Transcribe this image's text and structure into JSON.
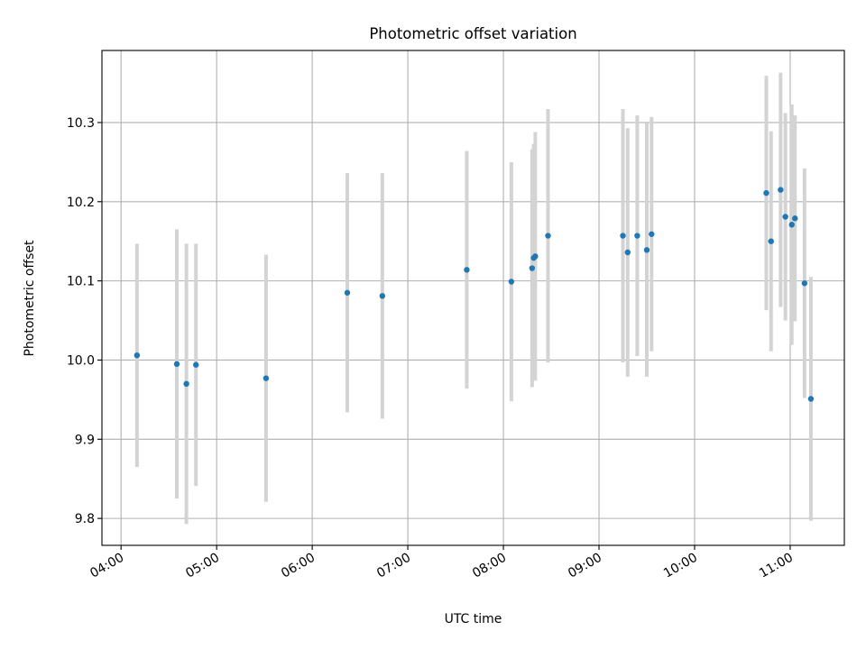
{
  "chart_data": {
    "type": "scatter",
    "title": "Photometric offset variation",
    "xlabel": "UTC time",
    "ylabel": "Photometric offset",
    "x_unit": "UTC time (hours)",
    "xlim": [
      "03:48",
      "11:34"
    ],
    "ylim": [
      9.766,
      10.391
    ],
    "x_ticks": [
      "04:00",
      "05:00",
      "06:00",
      "07:00",
      "08:00",
      "09:00",
      "10:00",
      "11:00"
    ],
    "y_ticks": [
      9.8,
      9.9,
      10.0,
      10.1,
      10.2,
      10.3
    ],
    "y_tick_labels": [
      "9.8",
      "9.9",
      "10.0",
      "10.1",
      "10.2",
      "10.3"
    ],
    "grid": true,
    "colors": {
      "point": "#1f77b4",
      "errorbar": "#d3d3d3",
      "grid": "#b0b0b0"
    },
    "points": [
      {
        "time": "04:10",
        "y": 10.006,
        "err": 0.141
      },
      {
        "time": "04:35",
        "y": 9.995,
        "err": 0.17
      },
      {
        "time": "04:41",
        "y": 9.97,
        "err": 0.177
      },
      {
        "time": "04:47",
        "y": 9.994,
        "err": 0.153
      },
      {
        "time": "05:31",
        "y": 9.977,
        "err": 0.156
      },
      {
        "time": "06:22",
        "y": 10.085,
        "err": 0.151
      },
      {
        "time": "06:44",
        "y": 10.081,
        "err": 0.155
      },
      {
        "time": "07:37",
        "y": 10.114,
        "err": 0.15
      },
      {
        "time": "08:05",
        "y": 10.099,
        "err": 0.151
      },
      {
        "time": "08:18",
        "y": 10.116,
        "err": 0.15
      },
      {
        "time": "08:19",
        "y": 10.129,
        "err": 0.144
      },
      {
        "time": "08:20",
        "y": 10.131,
        "err": 0.157
      },
      {
        "time": "08:28",
        "y": 10.157,
        "err": 0.16
      },
      {
        "time": "09:15",
        "y": 10.157,
        "err": 0.16
      },
      {
        "time": "09:18",
        "y": 10.136,
        "err": 0.157
      },
      {
        "time": "09:24",
        "y": 10.157,
        "err": 0.152
      },
      {
        "time": "09:30",
        "y": 10.139,
        "err": 0.16
      },
      {
        "time": "09:33",
        "y": 10.159,
        "err": 0.148
      },
      {
        "time": "10:45",
        "y": 10.211,
        "err": 0.148
      },
      {
        "time": "10:48",
        "y": 10.15,
        "err": 0.139
      },
      {
        "time": "10:54",
        "y": 10.215,
        "err": 0.148
      },
      {
        "time": "10:57",
        "y": 10.181,
        "err": 0.131
      },
      {
        "time": "11:01",
        "y": 10.171,
        "err": 0.152
      },
      {
        "time": "11:03",
        "y": 10.179,
        "err": 0.13
      },
      {
        "time": "11:09",
        "y": 10.097,
        "err": 0.145
      },
      {
        "time": "11:13",
        "y": 9.951,
        "err": 0.154
      }
    ]
  }
}
